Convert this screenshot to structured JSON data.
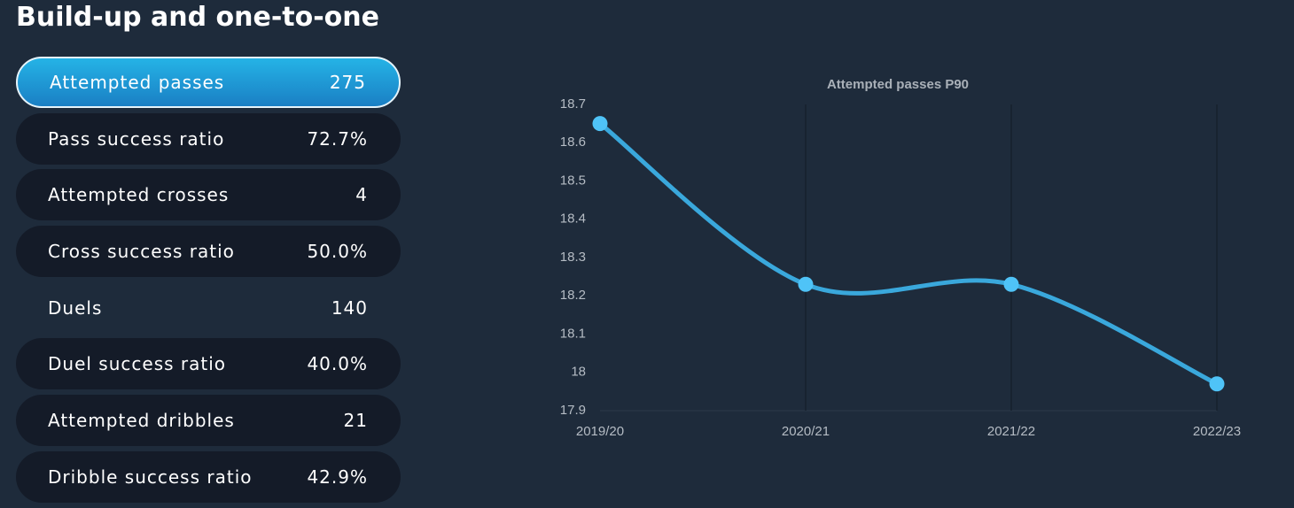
{
  "header": {
    "title": "Build-up and one-to-one"
  },
  "stats": [
    {
      "label": "Attempted passes",
      "value": "275"
    },
    {
      "label": "Pass success ratio",
      "value": "72.7%"
    },
    {
      "label": "Attempted crosses",
      "value": "4"
    },
    {
      "label": "Cross success ratio",
      "value": "50.0%"
    },
    {
      "label": "Duels",
      "value": "140"
    },
    {
      "label": "Duel success ratio",
      "value": "40.0%"
    },
    {
      "label": "Attempted dribbles",
      "value": "21"
    },
    {
      "label": "Dribble success ratio",
      "value": "42.9%"
    }
  ],
  "chart_data": {
    "type": "line",
    "title": "Attempted passes P90",
    "categories": [
      "2019/20",
      "2020/21",
      "2021/22",
      "2022/23"
    ],
    "values": [
      18.65,
      18.23,
      18.23,
      17.97
    ],
    "color": "#3aa8dc",
    "marker_color": "#4fc3f7",
    "ylim": [
      17.9,
      18.7
    ],
    "yticks": [
      17.9,
      18.0,
      18.1,
      18.2,
      18.3,
      18.4,
      18.5,
      18.6,
      18.7
    ],
    "grid": "vertical"
  }
}
